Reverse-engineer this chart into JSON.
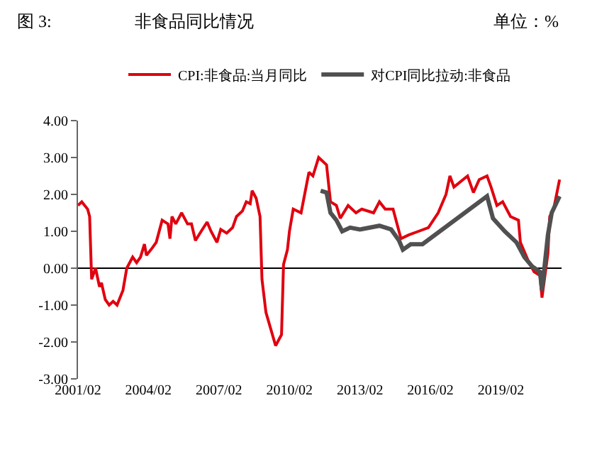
{
  "chart_data": {
    "type": "line",
    "title": "非食品同比情况",
    "annotations": [
      "图 3:",
      "单位：%"
    ],
    "xlim": [
      "2001-02",
      "2021-09"
    ],
    "xticks": [
      {
        "value": "2001-02",
        "label": "2001/02"
      },
      {
        "value": "2004-02",
        "label": "2004/02"
      },
      {
        "value": "2007-02",
        "label": "2007/02"
      },
      {
        "value": "2010-02",
        "label": "2010/02"
      },
      {
        "value": "2013-02",
        "label": "2013/02"
      },
      {
        "value": "2016-02",
        "label": "2016/02"
      },
      {
        "value": "2019-02",
        "label": "2019/02"
      }
    ],
    "ylim": [
      -3,
      4
    ],
    "yticks": [
      {
        "value": -3,
        "label": "-3.00"
      },
      {
        "value": -2,
        "label": "-2.00"
      },
      {
        "value": -1,
        "label": "-1.00"
      },
      {
        "value": 0,
        "label": "0.00"
      },
      {
        "value": 1,
        "label": "1.00"
      },
      {
        "value": 2,
        "label": "2.00"
      },
      {
        "value": 3,
        "label": "3.00"
      },
      {
        "value": 4,
        "label": "4.00"
      }
    ],
    "legend": "top",
    "marker": "none",
    "line_style": "solid",
    "series": [
      {
        "name": "CPI:非食品:当月同比",
        "color": "#e0000f",
        "x": [
          "2001-02",
          "2001-04",
          "2001-07",
          "2001-08",
          "2001-09",
          "2001-11",
          "2002-01",
          "2002-02",
          "2002-04",
          "2002-06",
          "2002-08",
          "2002-10",
          "2003-01",
          "2003-03",
          "2003-06",
          "2003-08",
          "2003-10",
          "2003-12",
          "2004-01",
          "2004-04",
          "2004-06",
          "2004-09",
          "2004-12",
          "2005-01",
          "2005-02",
          "2005-04",
          "2005-07",
          "2005-10",
          "2005-12",
          "2006-02",
          "2006-05",
          "2006-08",
          "2006-10",
          "2007-01",
          "2007-03",
          "2007-06",
          "2007-09",
          "2007-11",
          "2008-02",
          "2008-04",
          "2008-06",
          "2008-07",
          "2008-09",
          "2008-11",
          "2008-12",
          "2009-02",
          "2009-07",
          "2009-10",
          "2009-11",
          "2010-01",
          "2010-02",
          "2010-04",
          "2010-08",
          "2010-12",
          "2011-02",
          "2011-05",
          "2011-09",
          "2011-11",
          "2012-02",
          "2012-04",
          "2012-08",
          "2012-12",
          "2013-03",
          "2013-09",
          "2013-12",
          "2014-03",
          "2014-07",
          "2014-11",
          "2015-03",
          "2015-08",
          "2016-01",
          "2016-06",
          "2016-10",
          "2016-12",
          "2017-02",
          "2017-09",
          "2017-12",
          "2018-03",
          "2018-07",
          "2018-09",
          "2018-12",
          "2019-03",
          "2019-07",
          "2019-11",
          "2019-12",
          "2020-04",
          "2020-07",
          "2020-10",
          "2020-11",
          "2021-02",
          "2021-03",
          "2021-05",
          "2021-08"
        ],
        "values": [
          1.7,
          1.8,
          1.6,
          1.4,
          -0.3,
          0.0,
          -0.5,
          -0.4,
          -0.85,
          -1.0,
          -0.9,
          -1.0,
          -0.6,
          0.0,
          0.3,
          0.15,
          0.3,
          0.65,
          0.35,
          0.55,
          0.7,
          1.3,
          1.2,
          0.8,
          1.4,
          1.2,
          1.5,
          1.2,
          1.2,
          0.75,
          1.0,
          1.25,
          1.0,
          0.7,
          1.05,
          0.95,
          1.1,
          1.4,
          1.55,
          1.8,
          1.75,
          2.1,
          1.9,
          1.4,
          -0.3,
          -1.2,
          -2.1,
          -1.8,
          0.1,
          0.5,
          1.0,
          1.6,
          1.5,
          2.6,
          2.5,
          3.0,
          2.8,
          1.8,
          1.7,
          1.35,
          1.7,
          1.5,
          1.6,
          1.5,
          1.8,
          1.6,
          1.6,
          0.8,
          0.9,
          1.0,
          1.1,
          1.5,
          2.0,
          2.5,
          2.2,
          2.5,
          2.05,
          2.4,
          2.5,
          2.2,
          1.7,
          1.8,
          1.4,
          1.3,
          0.7,
          0.2,
          -0.1,
          -0.2,
          -0.8,
          0.4,
          1.4,
          1.6,
          2.4
        ]
      },
      {
        "name": "对CPI同比拉动:非食品",
        "color": "#505050",
        "x": [
          "2011-06",
          "2011-09",
          "2011-11",
          "2012-02",
          "2012-05",
          "2012-09",
          "2013-02",
          "2013-12",
          "2014-06",
          "2014-10",
          "2014-12",
          "2015-04",
          "2015-10",
          "2018-07",
          "2018-10",
          "2019-04",
          "2019-10",
          "2020-02",
          "2020-06",
          "2020-10",
          "2020-11",
          "2021-02",
          "2021-04",
          "2021-08"
        ],
        "values": [
          2.1,
          2.05,
          1.5,
          1.3,
          1.0,
          1.1,
          1.05,
          1.15,
          1.05,
          0.75,
          0.5,
          0.65,
          0.65,
          1.95,
          1.35,
          1.0,
          0.7,
          0.3,
          0.05,
          -0.1,
          -0.6,
          0.9,
          1.5,
          1.95
        ]
      }
    ]
  }
}
